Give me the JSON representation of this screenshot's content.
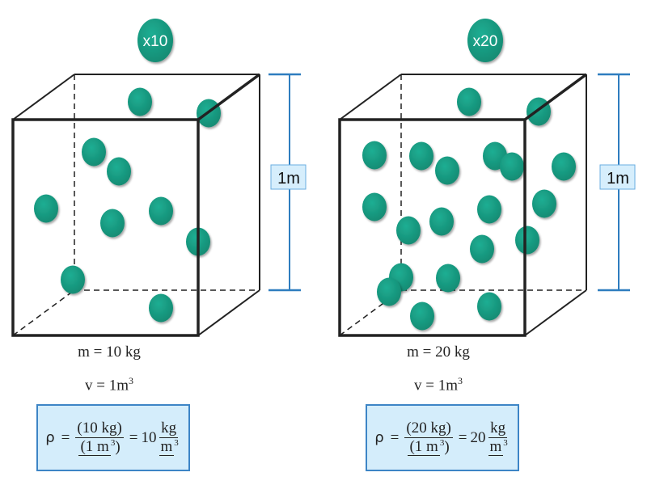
{
  "colors": {
    "ball": "#17a085",
    "dimension": "#2e7dbf",
    "label_bg": "#d6eefc",
    "formula_bg": "#d4edfb"
  },
  "panels": [
    {
      "badge": "x10",
      "ball_count": 10,
      "height_label": "1m",
      "mass": "m = 10 kg",
      "volume": "v = 1m",
      "volume_exp": "3",
      "formula": {
        "symbol": "ρ",
        "eq": "=",
        "num": "(10 kg)",
        "den_pre": "(1 m",
        "den_exp": "3",
        "den_post": ")",
        "eq2": "=",
        "value": "10",
        "unit_num": "kg",
        "unit_den": "m",
        "unit_exp": "3"
      }
    },
    {
      "badge": "x20",
      "ball_count": 20,
      "height_label": "1m",
      "mass": "m = 20 kg",
      "volume": "v = 1m",
      "volume_exp": "3",
      "formula": {
        "symbol": "ρ",
        "eq": "=",
        "num": "(20 kg)",
        "den_pre": "(1 m",
        "den_exp": "3",
        "den_post": ")",
        "eq2": "=",
        "value": "20",
        "unit_num": "kg",
        "unit_den": "m",
        "unit_exp": "3"
      }
    }
  ]
}
